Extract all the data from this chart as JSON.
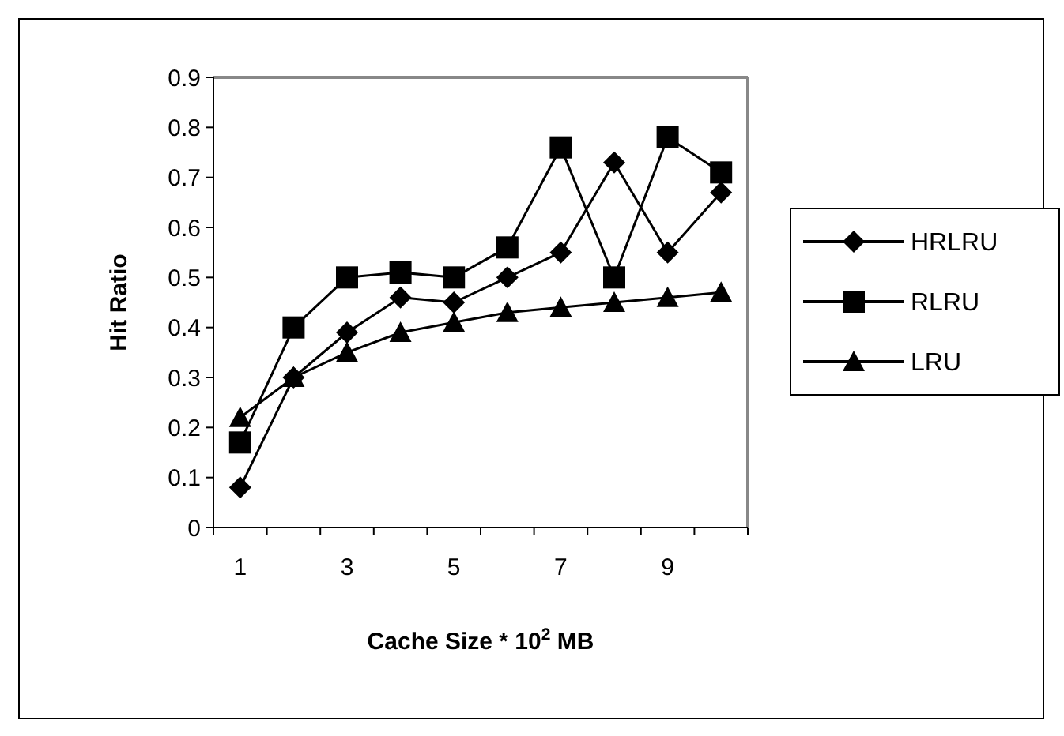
{
  "chart_data": {
    "type": "line",
    "xlabel": "Cache Size * 10$^{2}$ MB",
    "ylabel": "Hit Ratio",
    "categories": [
      "1",
      null,
      "3",
      null,
      "5",
      null,
      "7",
      null,
      "9",
      null
    ],
    "ylim": [
      0,
      0.9
    ],
    "yticks": [
      0,
      0.1,
      0.2,
      0.3,
      0.4,
      0.5,
      0.6,
      0.7,
      0.8,
      0.9
    ],
    "grid": false,
    "legend": "right",
    "line_style": "solid",
    "series": [
      {
        "name": "HRLRU",
        "color": "#000000",
        "marker": "diamond",
        "values": [
          0.08,
          0.3,
          0.39,
          0.46,
          0.45,
          0.5,
          0.55,
          0.73,
          0.55,
          0.67
        ]
      },
      {
        "name": "RLRU",
        "color": "#000000",
        "marker": "square",
        "values": [
          0.17,
          0.4,
          0.5,
          0.51,
          0.5,
          0.56,
          0.76,
          0.5,
          0.78,
          0.71
        ]
      },
      {
        "name": "LRU",
        "color": "#000000",
        "marker": "triangle",
        "values": [
          0.22,
          0.3,
          0.35,
          0.39,
          0.41,
          0.43,
          0.44,
          0.45,
          0.46,
          0.47
        ]
      }
    ]
  }
}
